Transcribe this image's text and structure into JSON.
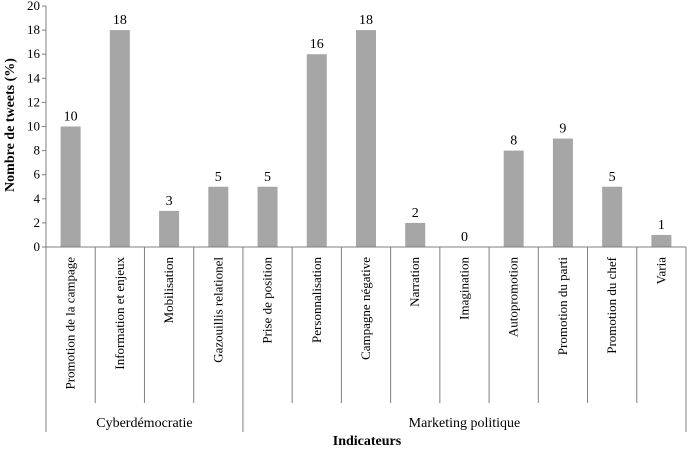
{
  "chart_data": {
    "type": "bar",
    "title": "",
    "xlabel": "Indicateurs",
    "ylabel": "Nombre de tweets (%)",
    "ylim": [
      0,
      20
    ],
    "yticks": [
      0,
      2,
      4,
      6,
      8,
      10,
      12,
      14,
      16,
      18,
      20
    ],
    "grid": false,
    "categories": [
      "Promotion de la campage",
      "Information et enjeux",
      "Mobilisation",
      "Gazouillis relationel",
      "Prise de position",
      "Personnalisation",
      "Campagne négative",
      "Narration",
      "Imagination",
      "Autopromotion",
      "Promotion du parti",
      "Promotion du chef",
      "Varia"
    ],
    "values": [
      10,
      18,
      3,
      5,
      5,
      16,
      18,
      2,
      0,
      8,
      9,
      5,
      1
    ],
    "groups": [
      {
        "label": "Cyberdémocratie",
        "start": 0,
        "count": 4
      },
      {
        "label": "Marketing politique",
        "start": 4,
        "count": 9
      }
    ],
    "colors": {
      "bar": "#a6a6a6",
      "axis": "#7f7f7f"
    }
  }
}
